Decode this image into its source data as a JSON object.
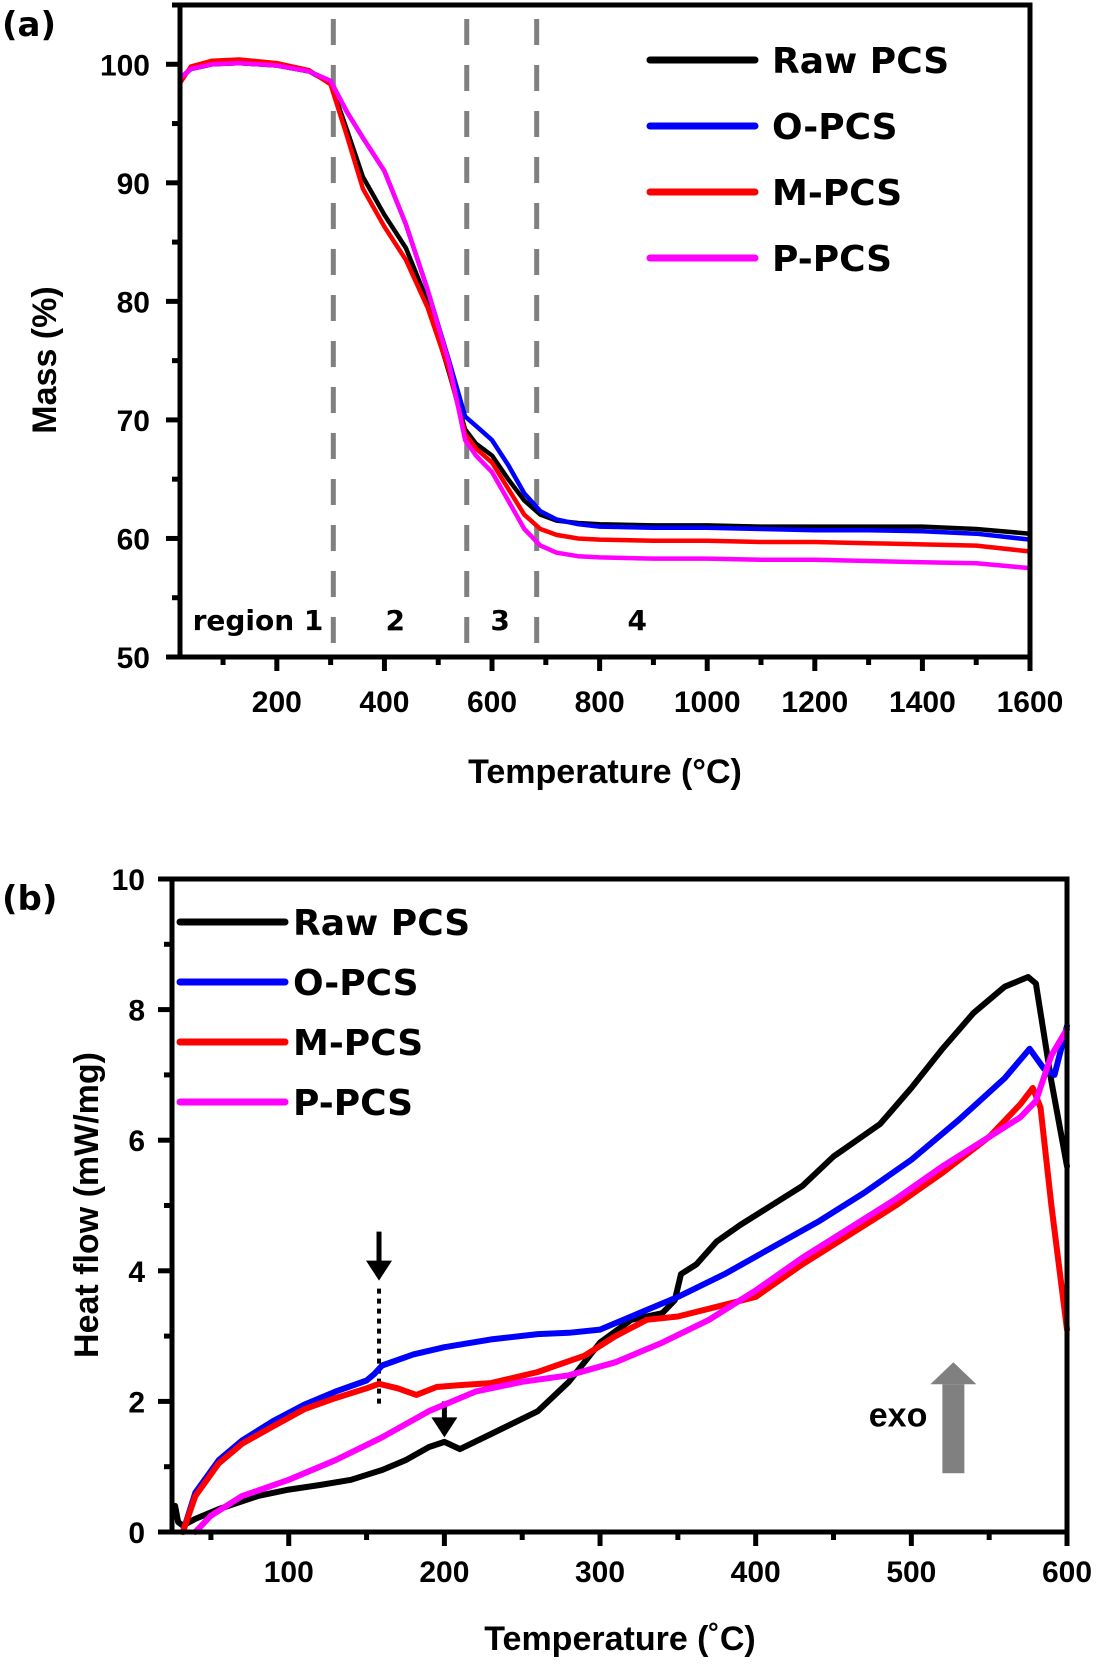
{
  "chart_data": [
    {
      "id": "a",
      "type": "line",
      "panel_label": "(a)",
      "title": "",
      "xlabel": "Temperature (°C)",
      "ylabel": "Mass (%)",
      "xlim": [
        20,
        1600
      ],
      "ylim": [
        50,
        105
      ],
      "xticks": [
        200,
        400,
        600,
        800,
        1000,
        1200,
        1400,
        1600
      ],
      "xtick_labels": [
        "200",
        "400",
        "600",
        "800",
        "1000",
        "1200",
        "1400",
        "1600"
      ],
      "yticks": [
        50,
        60,
        70,
        80,
        90,
        100
      ],
      "ytick_labels": [
        "50",
        "60",
        "70",
        "80",
        "90",
        "100"
      ],
      "grid": false,
      "legend_position": "top-right",
      "region_boundaries": [
        305,
        553,
        683
      ],
      "region_labels": [
        {
          "text": "region 1",
          "x": 165
        },
        {
          "text": "2",
          "x": 420
        },
        {
          "text": "3",
          "x": 615
        },
        {
          "text": "4",
          "x": 870
        }
      ],
      "series": [
        {
          "name": "Raw PCS",
          "color": "#000000",
          "x": [
            20,
            40,
            80,
            130,
            200,
            260,
            300,
            330,
            360,
            400,
            440,
            480,
            520,
            550,
            570,
            600,
            630,
            660,
            690,
            720,
            760,
            800,
            900,
            1000,
            1100,
            1200,
            1300,
            1400,
            1500,
            1600
          ],
          "y": [
            98.8,
            99.6,
            100.0,
            100.1,
            99.9,
            99.4,
            98.4,
            94.5,
            90.5,
            87.3,
            84.5,
            80.0,
            74.0,
            69.2,
            68.0,
            67.0,
            65.0,
            63.2,
            62.0,
            61.5,
            61.3,
            61.2,
            61.1,
            61.1,
            61.0,
            61.0,
            61.0,
            61.0,
            60.8,
            60.4
          ]
        },
        {
          "name": "O-PCS",
          "color": "#0000ff",
          "x": [
            20,
            40,
            80,
            130,
            200,
            260,
            300,
            330,
            360,
            400,
            440,
            480,
            520,
            550,
            570,
            600,
            630,
            660,
            690,
            720,
            760,
            800,
            900,
            1000,
            1100,
            1200,
            1300,
            1400,
            1500,
            1600
          ],
          "y": [
            98.8,
            99.6,
            100.0,
            100.1,
            99.9,
            99.4,
            98.6,
            96.0,
            93.8,
            91.0,
            86.5,
            81.0,
            75.0,
            70.3,
            69.5,
            68.3,
            66.2,
            63.8,
            62.3,
            61.6,
            61.2,
            61.0,
            60.9,
            60.9,
            60.8,
            60.7,
            60.7,
            60.6,
            60.4,
            59.9
          ]
        },
        {
          "name": "M-PCS",
          "color": "#ff0000",
          "x": [
            20,
            40,
            80,
            130,
            200,
            260,
            300,
            330,
            360,
            400,
            440,
            480,
            520,
            550,
            570,
            600,
            630,
            660,
            690,
            720,
            760,
            800,
            900,
            1000,
            1100,
            1200,
            1300,
            1400,
            1500,
            1600
          ],
          "y": [
            98.4,
            99.8,
            100.3,
            100.4,
            100.1,
            99.5,
            98.3,
            94.0,
            89.5,
            86.3,
            83.5,
            79.5,
            74.2,
            68.8,
            67.6,
            66.4,
            64.2,
            62.0,
            60.8,
            60.3,
            60.0,
            59.9,
            59.8,
            59.8,
            59.7,
            59.7,
            59.6,
            59.5,
            59.4,
            58.9
          ]
        },
        {
          "name": "P-PCS",
          "color": "#ff00ff",
          "x": [
            20,
            40,
            80,
            130,
            200,
            260,
            300,
            330,
            360,
            400,
            440,
            480,
            520,
            550,
            570,
            600,
            630,
            660,
            690,
            720,
            760,
            800,
            900,
            1000,
            1100,
            1200,
            1300,
            1400,
            1500,
            1600
          ],
          "y": [
            98.8,
            99.6,
            100.0,
            100.1,
            99.9,
            99.4,
            98.6,
            96.0,
            93.8,
            91.0,
            86.5,
            81.0,
            74.8,
            68.3,
            67.0,
            65.6,
            63.2,
            60.8,
            59.4,
            58.8,
            58.5,
            58.4,
            58.3,
            58.3,
            58.2,
            58.2,
            58.1,
            58.0,
            57.9,
            57.5
          ]
        }
      ]
    },
    {
      "id": "b",
      "type": "line",
      "panel_label": "(b)",
      "title": "",
      "xlabel": "Temperature (˚C)",
      "ylabel": "Heat flow (mW/mg)",
      "xlim": [
        25,
        600
      ],
      "ylim": [
        0,
        10
      ],
      "xticks": [
        100,
        200,
        300,
        400,
        500,
        600
      ],
      "xtick_labels": [
        "100",
        "200",
        "300",
        "400",
        "500",
        "600"
      ],
      "yticks": [
        0,
        2,
        4,
        6,
        8,
        10
      ],
      "ytick_labels": [
        "0",
        "2",
        "4",
        "6",
        "8",
        "10"
      ],
      "grid": false,
      "legend_position": "top-left",
      "annotations": [
        {
          "type": "arrow-down",
          "x": 158,
          "y_from": 4.6,
          "y_to": 3.85,
          "dotted_to": 1.9
        },
        {
          "type": "arrow-down",
          "x": 200,
          "y_from": 2.0,
          "y_to": 1.45
        },
        {
          "type": "exo-arrow",
          "text": "exo",
          "x": 527,
          "y_from": 0.9,
          "y_to": 2.6
        }
      ],
      "series": [
        {
          "name": "Raw PCS",
          "color": "#000000",
          "x": [
            27,
            29,
            32,
            40,
            55,
            80,
            100,
            120,
            140,
            160,
            175,
            190,
            200,
            210,
            230,
            260,
            280,
            300,
            320,
            340,
            348,
            352,
            362,
            375,
            390,
            410,
            430,
            450,
            465,
            480,
            500,
            520,
            540,
            560,
            575,
            580,
            590,
            600
          ],
          "y": [
            0.4,
            0.15,
            0.1,
            0.2,
            0.35,
            0.55,
            0.65,
            0.72,
            0.8,
            0.95,
            1.1,
            1.3,
            1.38,
            1.27,
            1.5,
            1.85,
            2.3,
            2.9,
            3.25,
            3.35,
            3.55,
            3.95,
            4.1,
            4.45,
            4.7,
            5.0,
            5.3,
            5.75,
            6.0,
            6.25,
            6.8,
            7.4,
            7.95,
            8.35,
            8.5,
            8.4,
            6.9,
            5.6
          ]
        },
        {
          "name": "O-PCS",
          "color": "#0000ff",
          "x": [
            32,
            40,
            55,
            70,
            90,
            110,
            130,
            150,
            155,
            160,
            180,
            200,
            230,
            260,
            280,
            300,
            320,
            350,
            380,
            410,
            440,
            470,
            500,
            530,
            560,
            576,
            585,
            592,
            600
          ],
          "y": [
            0.0,
            0.6,
            1.1,
            1.4,
            1.7,
            1.95,
            2.15,
            2.32,
            2.42,
            2.55,
            2.72,
            2.83,
            2.95,
            3.03,
            3.05,
            3.1,
            3.3,
            3.6,
            3.95,
            4.35,
            4.75,
            5.2,
            5.7,
            6.3,
            6.95,
            7.4,
            7.1,
            7.0,
            7.75
          ]
        },
        {
          "name": "M-PCS",
          "color": "#ff0000",
          "x": [
            32,
            40,
            55,
            70,
            90,
            110,
            130,
            150,
            158,
            170,
            182,
            195,
            210,
            230,
            260,
            290,
            310,
            330,
            350,
            380,
            400,
            430,
            460,
            490,
            520,
            550,
            570,
            578,
            583,
            590,
            600
          ],
          "y": [
            0.0,
            0.55,
            1.05,
            1.35,
            1.62,
            1.88,
            2.05,
            2.2,
            2.27,
            2.2,
            2.1,
            2.22,
            2.25,
            2.28,
            2.45,
            2.7,
            3.0,
            3.25,
            3.3,
            3.48,
            3.6,
            4.1,
            4.55,
            5.0,
            5.5,
            6.05,
            6.55,
            6.8,
            6.5,
            5.0,
            3.1
          ]
        },
        {
          "name": "P-PCS",
          "color": "#ff00ff",
          "x": [
            40,
            50,
            70,
            100,
            130,
            160,
            190,
            220,
            250,
            280,
            310,
            340,
            370,
            400,
            430,
            460,
            490,
            520,
            550,
            570,
            580,
            590,
            600
          ],
          "y": [
            0.0,
            0.25,
            0.55,
            0.8,
            1.1,
            1.45,
            1.85,
            2.15,
            2.3,
            2.4,
            2.6,
            2.9,
            3.25,
            3.7,
            4.2,
            4.65,
            5.1,
            5.6,
            6.05,
            6.35,
            6.6,
            7.3,
            7.7
          ]
        }
      ]
    }
  ]
}
